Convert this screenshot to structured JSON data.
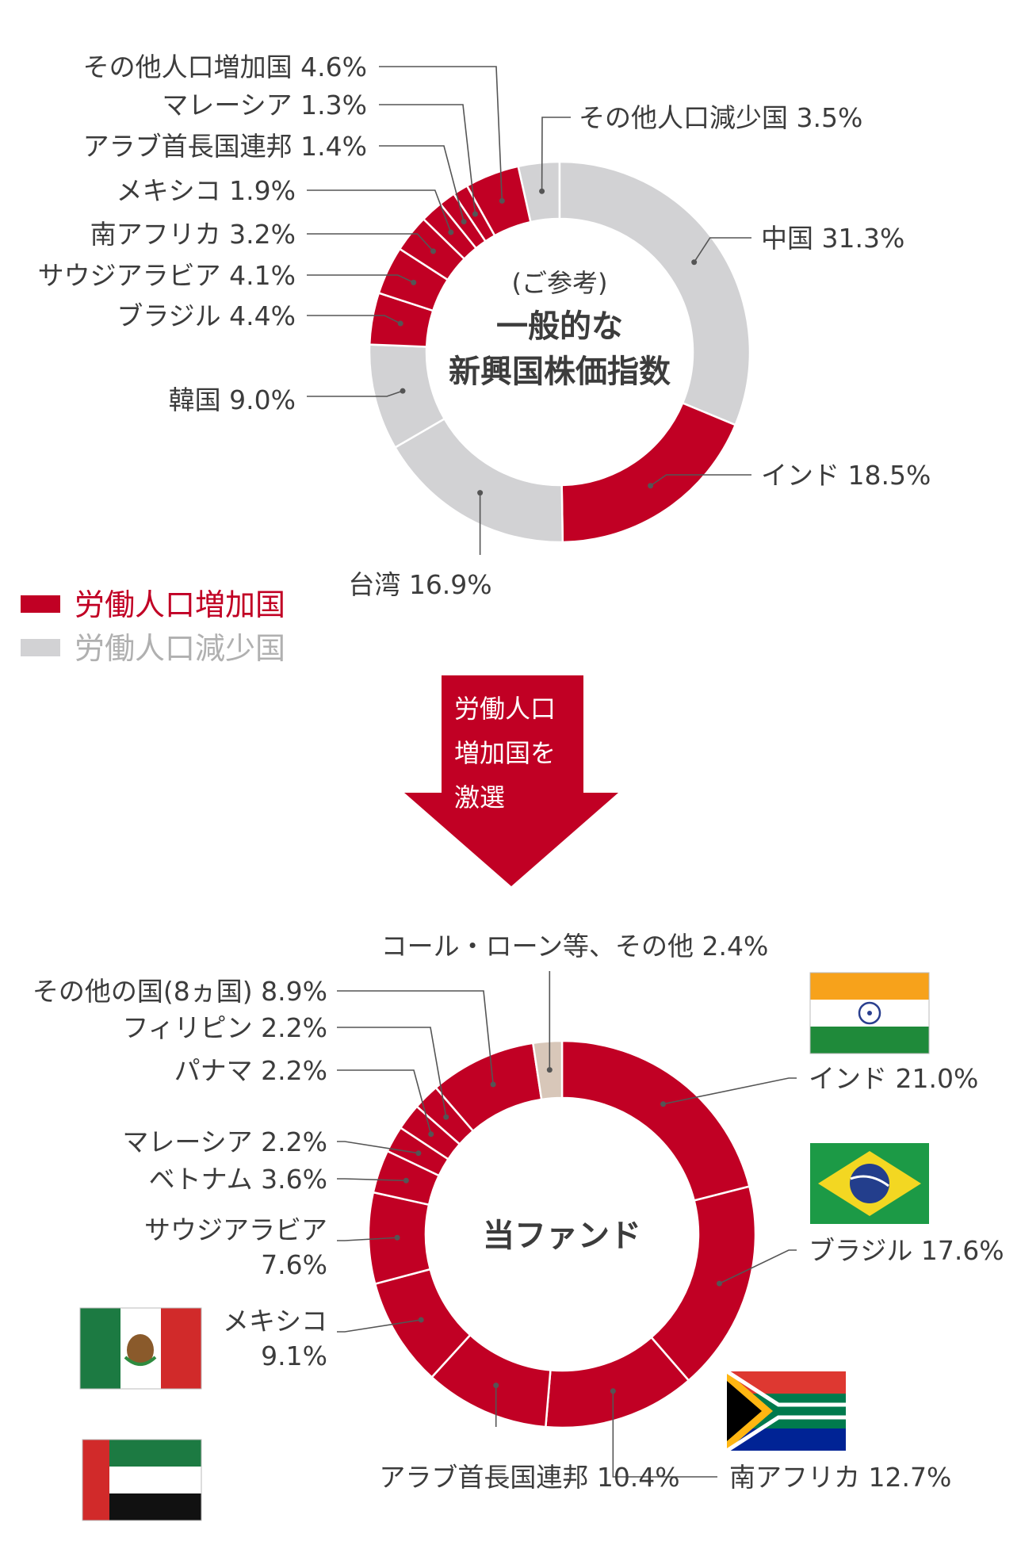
{
  "colors": {
    "increase": "#c10024",
    "decrease": "#d2d2d4",
    "cash": "#d8c7b9",
    "leader": "#555555",
    "text": "#3c3c3c"
  },
  "legend": {
    "increase_label": "労働人口増加国",
    "decrease_label": "労働人口減少国"
  },
  "arrow": {
    "lines": [
      "労働人口",
      "増加国を",
      "激選"
    ]
  },
  "chart_data": [
    {
      "type": "donut",
      "center": {
        "note": "(ご参考)",
        "line1": "一般的な",
        "line2": "新興国株価指数"
      },
      "slices": [
        {
          "label": "その他人口減少国 3.5%",
          "value": 3.5,
          "group": "decrease"
        },
        {
          "label": "中国 31.3%",
          "value": 31.3,
          "group": "decrease"
        },
        {
          "label": "インド 18.5%",
          "value": 18.5,
          "group": "increase"
        },
        {
          "label": "台湾 16.9%",
          "value": 16.9,
          "group": "decrease"
        },
        {
          "label": "韓国 9.0%",
          "value": 9.0,
          "group": "decrease"
        },
        {
          "label": "ブラジル 4.4%",
          "value": 4.4,
          "group": "increase"
        },
        {
          "label": "サウジアラビア 4.1%",
          "value": 4.1,
          "group": "increase"
        },
        {
          "label": "南アフリカ 3.2%",
          "value": 3.2,
          "group": "increase"
        },
        {
          "label": "メキシコ 1.9%",
          "value": 1.9,
          "group": "increase"
        },
        {
          "label": "アラブ首長国連邦 1.4%",
          "value": 1.4,
          "group": "increase"
        },
        {
          "label": "マレーシア 1.3%",
          "value": 1.3,
          "group": "increase"
        },
        {
          "label": "その他人口増加国 4.6%",
          "value": 4.6,
          "group": "increase"
        }
      ]
    },
    {
      "type": "donut",
      "center": {
        "title": "当ファンド"
      },
      "slices": [
        {
          "label": "インド 21.0%",
          "value": 21.0,
          "group": "increase",
          "flag": "india-flag"
        },
        {
          "label": "ブラジル 17.6%",
          "value": 17.6,
          "group": "increase",
          "flag": "brazil-flag"
        },
        {
          "label": "南アフリカ 12.7%",
          "value": 12.7,
          "group": "increase",
          "flag": "south-africa-flag"
        },
        {
          "label": "アラブ首長国連邦 10.4%",
          "value": 10.4,
          "group": "increase",
          "flag": "uae-flag"
        },
        {
          "label": "メキシコ|9.1%",
          "value": 9.1,
          "group": "increase",
          "flag": "mexico-flag"
        },
        {
          "label": "サウジアラビア|7.6%",
          "value": 7.6,
          "group": "increase"
        },
        {
          "label": "ベトナム 3.6%",
          "value": 3.6,
          "group": "increase"
        },
        {
          "label": "マレーシア 2.2%",
          "value": 2.2,
          "group": "increase"
        },
        {
          "label": "パナマ 2.2%",
          "value": 2.2,
          "group": "increase"
        },
        {
          "label": "フィリピン 2.2%",
          "value": 2.2,
          "group": "increase"
        },
        {
          "label": "その他の国(8ヵ国) 8.9%",
          "value": 8.9,
          "group": "increase"
        },
        {
          "label": "コール・ローン等、その他 2.4%",
          "value": 2.4,
          "group": "cash"
        }
      ]
    }
  ]
}
